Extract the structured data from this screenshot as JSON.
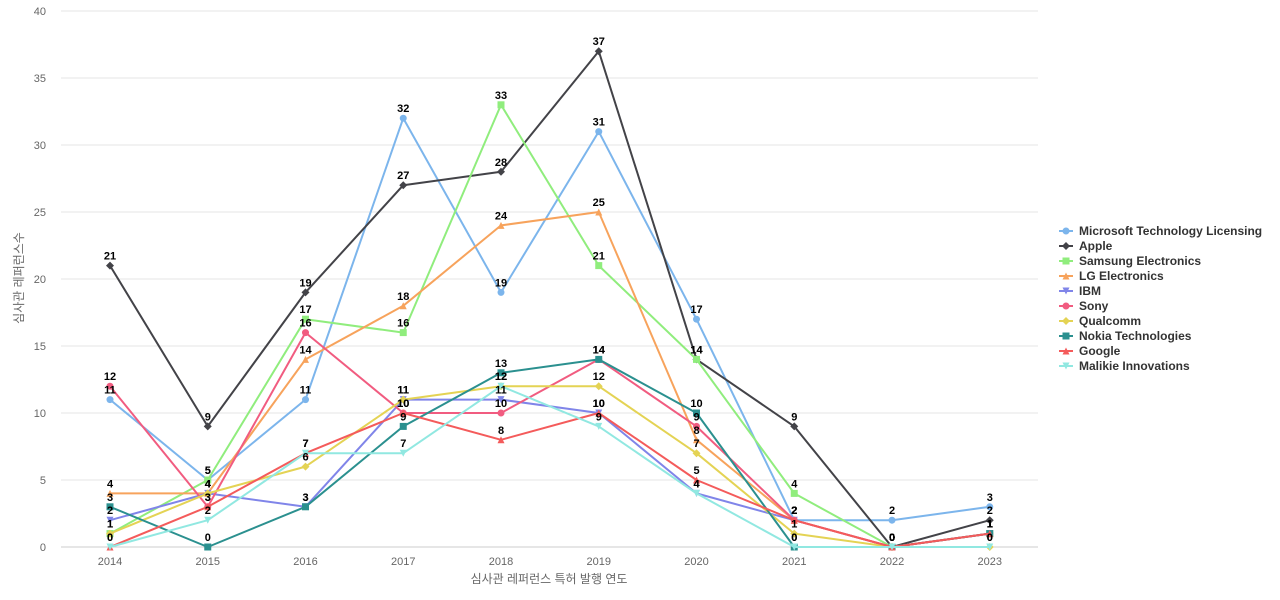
{
  "chart_data": {
    "type": "line",
    "title": "",
    "xlabel": "심사관 레퍼런스 특허 발행 연도",
    "ylabel": "심사관 레퍼런스수",
    "ylim": [
      0,
      40
    ],
    "yticks": [
      0,
      5,
      10,
      15,
      20,
      25,
      30,
      35,
      40
    ],
    "categories": [
      "2014",
      "2015",
      "2016",
      "2017",
      "2018",
      "2019",
      "2020",
      "2021",
      "2022",
      "2023"
    ],
    "grid": true,
    "legend": "right",
    "series": [
      {
        "name": "Microsoft Technology Licensing",
        "color": "#7cb5ec",
        "marker": "circle",
        "values": [
          11,
          5,
          11,
          32,
          19,
          31,
          17,
          2,
          2,
          3
        ]
      },
      {
        "name": "Apple",
        "color": "#434348",
        "marker": "diamond",
        "values": [
          21,
          9,
          19,
          27,
          28,
          37,
          14,
          9,
          0,
          2
        ]
      },
      {
        "name": "Samsung Electronics",
        "color": "#90ed7d",
        "marker": "square",
        "values": [
          1,
          5,
          17,
          16,
          33,
          21,
          14,
          4,
          0,
          1
        ]
      },
      {
        "name": "LG Electronics",
        "color": "#f7a35c",
        "marker": "triangle",
        "values": [
          4,
          4,
          14,
          18,
          24,
          25,
          8,
          2,
          0,
          1
        ]
      },
      {
        "name": "IBM",
        "color": "#8085e9",
        "marker": "triangle-down",
        "values": [
          2,
          4,
          3,
          11,
          11,
          10,
          4,
          2,
          0,
          1
        ]
      },
      {
        "name": "Sony",
        "color": "#f15c80",
        "marker": "circle",
        "values": [
          12,
          3,
          16,
          10,
          10,
          14,
          9,
          2,
          0,
          1
        ]
      },
      {
        "name": "Qualcomm",
        "color": "#e4d354",
        "marker": "diamond",
        "values": [
          1,
          4,
          6,
          11,
          12,
          12,
          7,
          1,
          0,
          0
        ]
      },
      {
        "name": "Nokia Technologies",
        "color": "#2b908f",
        "marker": "square",
        "values": [
          3,
          0,
          3,
          9,
          13,
          14,
          10,
          0,
          0,
          1
        ]
      },
      {
        "name": "Google",
        "color": "#f45b5b",
        "marker": "triangle",
        "values": [
          0,
          3,
          7,
          10,
          8,
          10,
          5,
          2,
          0,
          1
        ]
      },
      {
        "name": "Malikie Innovations",
        "color": "#91e8e1",
        "marker": "triangle-down",
        "values": [
          0,
          2,
          7,
          7,
          12,
          9,
          4,
          0,
          0,
          0
        ]
      }
    ]
  }
}
